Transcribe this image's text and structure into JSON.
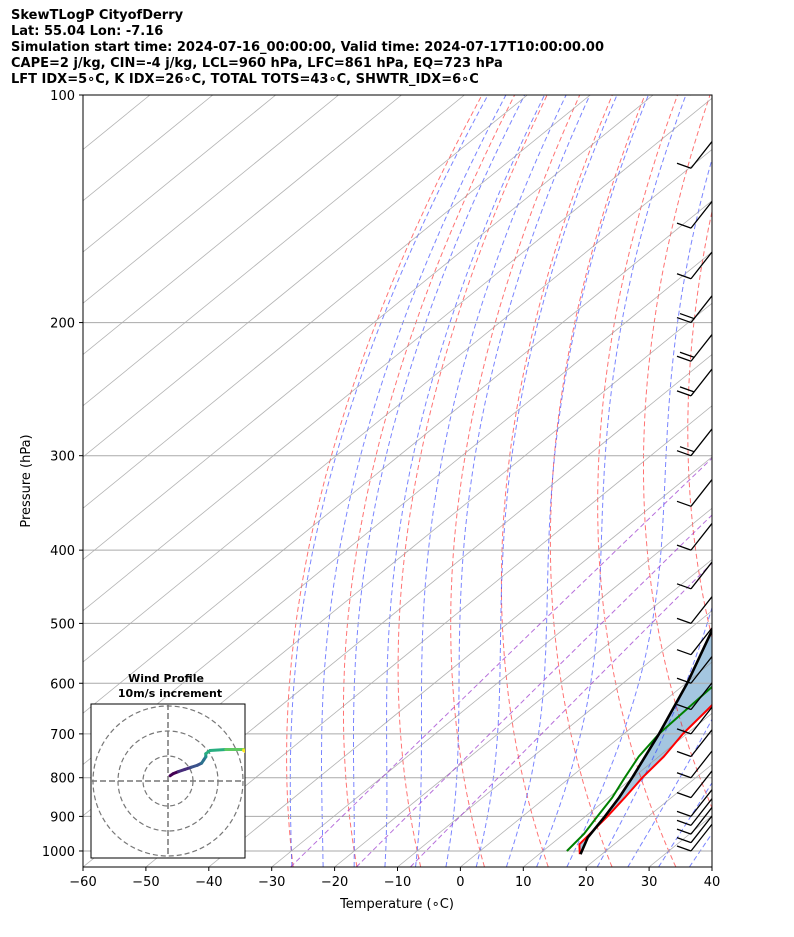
{
  "header": {
    "line1": "SkewTLogP CityofDerry",
    "line2": "Lat: 55.04   Lon: -7.16",
    "line3": "Simulation start time: 2024-07-16_00:00:00, Valid time: 2024-07-17T10:00:00.00",
    "line4": "CAPE=2 j/kg, CIN=-4 j/kg, LCL=960 hPa, LFC=861 hPa, EQ=723 hPa",
    "line5": "LFT IDX=5∘C, K IDX=26∘C, TOTAL TOTS=43∘C, SHWTR_IDX=6∘C"
  },
  "chart_data": {
    "type": "line",
    "subtype": "skew-t log-p",
    "title": "SkewTLogP CityofDerry",
    "xlabel": "Temperature (∘C)",
    "ylabel": "Pressure (hPa)",
    "xlim": [
      -60,
      40
    ],
    "ylim": [
      1050,
      100
    ],
    "y_scale": "log",
    "x_ticks": [
      "−60",
      "−50",
      "−40",
      "−30",
      "−20",
      "−10",
      "0",
      "10",
      "20",
      "30",
      "40"
    ],
    "x_tick_values": [
      -60,
      -50,
      -40,
      -30,
      -20,
      -10,
      0,
      10,
      20,
      30,
      40
    ],
    "y_ticks": [
      "1000",
      "900",
      "800",
      "700",
      "600",
      "500",
      "400",
      "300",
      "200",
      "100"
    ],
    "y_tick_values": [
      1000,
      900,
      800,
      700,
      600,
      500,
      400,
      300,
      200,
      100
    ],
    "grid": true,
    "series": [
      {
        "role": "temperature",
        "color": "#ff0000",
        "points": [
          [
            1010,
            16.5
          ],
          [
            980,
            14.5
          ],
          [
            900,
            13.5
          ],
          [
            850,
            12.6
          ],
          [
            800,
            11.5
          ],
          [
            750,
            10.8
          ],
          [
            700,
            9.4
          ],
          [
            650,
            8.6
          ],
          [
            600,
            7.6
          ],
          [
            550,
            7.0
          ],
          [
            500,
            5.6
          ],
          [
            450,
            4.4
          ],
          [
            400,
            2.3
          ],
          [
            350,
            -4.0
          ],
          [
            300,
            -13.5
          ],
          [
            250,
            -27.0
          ],
          [
            230,
            -32.0
          ],
          [
            215,
            -31.4
          ],
          [
            200,
            -27.5
          ],
          [
            175,
            -22.0
          ],
          [
            160,
            -17.0
          ],
          [
            150,
            -14.5
          ],
          [
            140,
            -12.5
          ],
          [
            130,
            -11.6
          ],
          [
            120,
            -11.2
          ],
          [
            110,
            -9.8
          ],
          [
            100,
            -6.5
          ]
        ]
      },
      {
        "role": "dewpoint",
        "color": "#008000",
        "points": [
          [
            1000,
            13.8
          ],
          [
            950,
            13.2
          ],
          [
            900,
            11.9
          ],
          [
            850,
            10.6
          ],
          [
            800,
            8.7
          ],
          [
            750,
            6.8
          ],
          [
            700,
            5.6
          ],
          [
            650,
            5.2
          ],
          [
            600,
            4.8
          ],
          [
            550,
            3.6
          ],
          [
            500,
            2.0
          ],
          [
            450,
            1.0
          ],
          [
            400,
            -1.5
          ],
          [
            350,
            -10.5
          ],
          [
            330,
            -13.0
          ],
          [
            300,
            -17.0
          ],
          [
            250,
            -30.0
          ],
          [
            230,
            -35.0
          ],
          [
            215,
            -33.3
          ],
          [
            200,
            -32.4
          ],
          [
            180,
            -38.0
          ],
          [
            165,
            -44.0
          ],
          [
            155,
            -45.0
          ],
          [
            140,
            -37.5
          ],
          [
            120,
            -26.5
          ],
          [
            100,
            -12.5
          ]
        ]
      },
      {
        "role": "parcel",
        "color": "#000000",
        "points": [
          [
            1010,
            16.6
          ],
          [
            960,
            14.5
          ],
          [
            900,
            13.1
          ],
          [
            850,
            11.7
          ],
          [
            800,
            9.9
          ],
          [
            700,
            5.6
          ],
          [
            600,
            0.2
          ],
          [
            500,
            -7.0
          ],
          [
            400,
            -17.5
          ],
          [
            300,
            -33.0
          ],
          [
            250,
            -44.0
          ],
          [
            200,
            -57.5
          ],
          [
            150,
            -76.0
          ],
          [
            120,
            -90.0
          ],
          [
            100,
            -100.0
          ]
        ]
      }
    ],
    "shaded_area": "cape-cin",
    "wind_barbs": [
      {
        "p": 1000,
        "label": "barb"
      },
      {
        "p": 975
      },
      {
        "p": 950
      },
      {
        "p": 925
      },
      {
        "p": 900
      },
      {
        "p": 850
      },
      {
        "p": 800
      },
      {
        "p": 750
      },
      {
        "p": 700
      },
      {
        "p": 650
      },
      {
        "p": 600
      },
      {
        "p": 550
      },
      {
        "p": 500
      },
      {
        "p": 450
      },
      {
        "p": 400
      },
      {
        "p": 350
      },
      {
        "p": 300
      },
      {
        "p": 250
      },
      {
        "p": 225
      },
      {
        "p": 200
      },
      {
        "p": 175
      },
      {
        "p": 150
      },
      {
        "p": 125
      },
      {
        "p": 100
      }
    ],
    "hodograph": {
      "title_line1": "Wind Profile",
      "title_line2": "10m/s increment",
      "rings": [
        1,
        2,
        3
      ],
      "trace_u": [
        0.2,
        0.5,
        1.0,
        1.6,
        2.2,
        2.8,
        3.2,
        3.4,
        3.6,
        3.6,
        4.0,
        5.5,
        7.0,
        7.2,
        7.4,
        7.4,
        7.2
      ],
      "trace_v": [
        0.5,
        0.7,
        0.9,
        1.1,
        1.3,
        1.5,
        1.7,
        2.0,
        2.3,
        2.6,
        2.9,
        3.0,
        3.0,
        3.0,
        2.9,
        2.8,
        2.9
      ]
    }
  }
}
